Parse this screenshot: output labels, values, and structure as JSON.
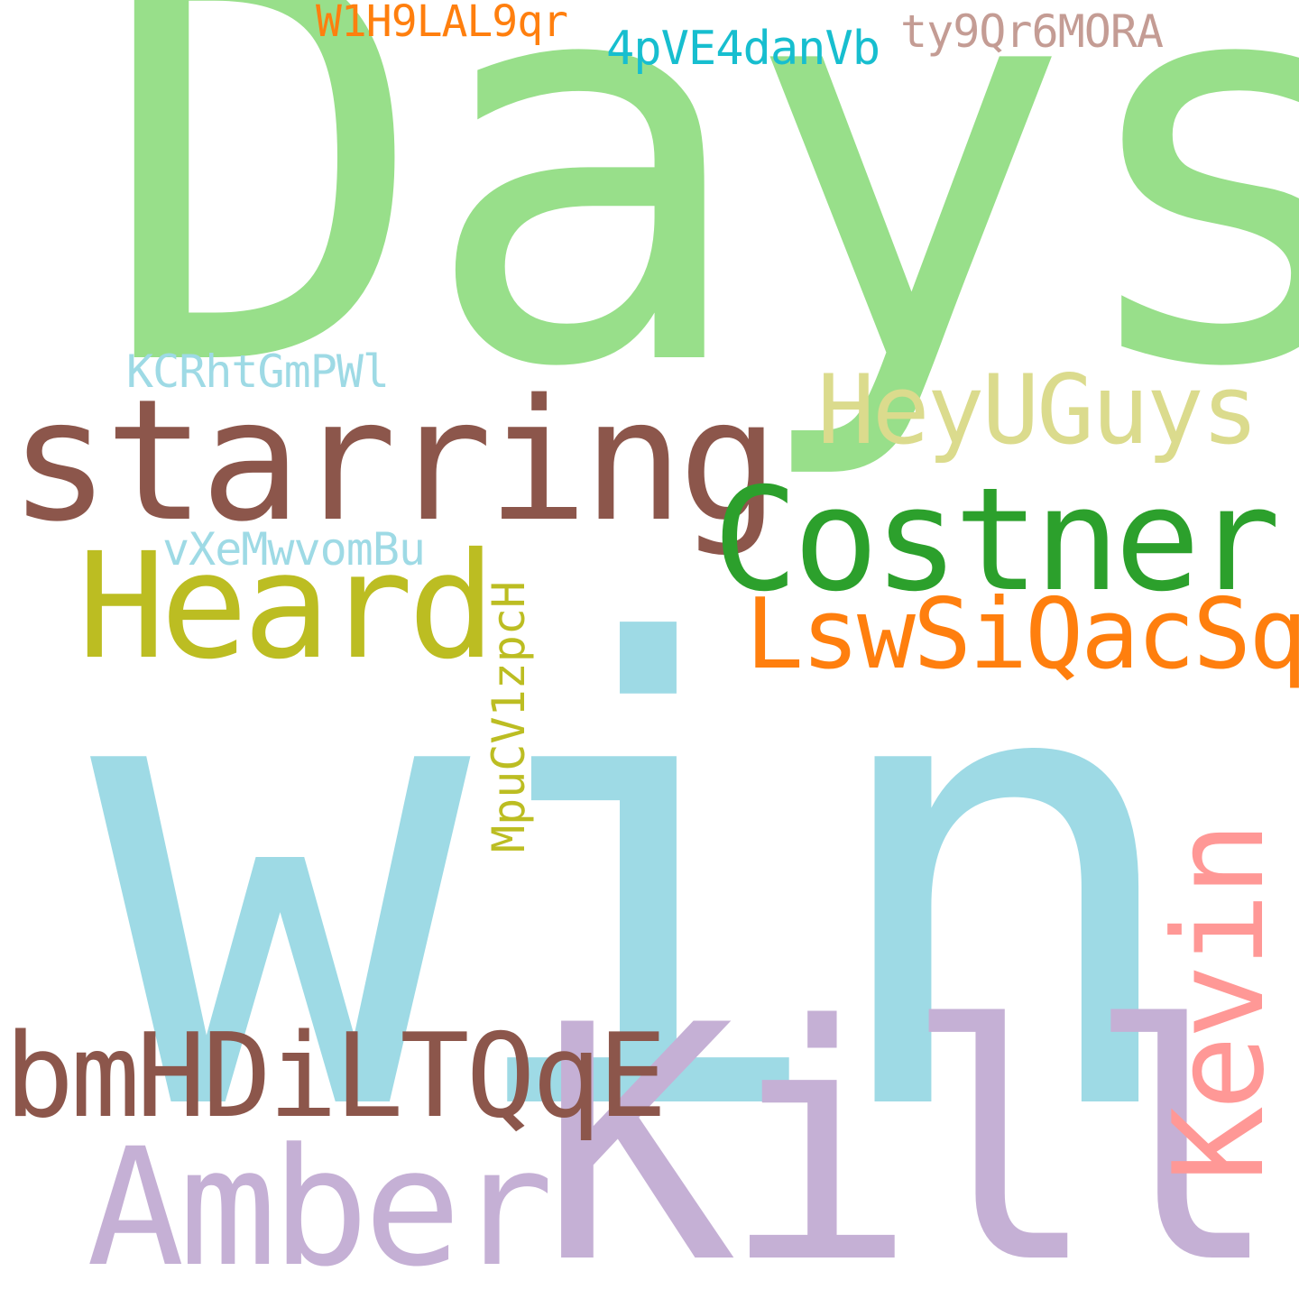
{
  "words": [
    {
      "key": "days",
      "text": "Days",
      "color": "#98df8a",
      "orientation": "horizontal"
    },
    {
      "key": "win",
      "text": "win",
      "color": "#9edae5",
      "orientation": "horizontal"
    },
    {
      "key": "kill",
      "text": "Kill",
      "color": "#c5b0d5",
      "orientation": "horizontal"
    },
    {
      "key": "starring",
      "text": "starring",
      "color": "#8c564b",
      "orientation": "horizontal"
    },
    {
      "key": "costner",
      "text": "Costner",
      "color": "#2ca02c",
      "orientation": "horizontal"
    },
    {
      "key": "heard",
      "text": "Heard",
      "color": "#bcbd22",
      "orientation": "horizontal"
    },
    {
      "key": "heyuguys",
      "text": "HeyUGuys",
      "color": "#dbdb8d",
      "orientation": "horizontal"
    },
    {
      "key": "amber",
      "text": "Amber",
      "color": "#c5b0d5",
      "orientation": "horizontal"
    },
    {
      "key": "bmhd",
      "text": "bmHDiLTQqE",
      "color": "#8c564b",
      "orientation": "horizontal"
    },
    {
      "key": "lsws",
      "text": "LswSiQacSq",
      "color": "#ff7f0e",
      "orientation": "horizontal"
    },
    {
      "key": "kevin",
      "text": "Kevin",
      "color": "#ff9896",
      "orientation": "vertical"
    },
    {
      "key": "mpucv",
      "text": "MpuCV1zpcH",
      "color": "#bcbd22",
      "orientation": "vertical"
    },
    {
      "key": "kcr",
      "text": "KCRhtGmPWl",
      "color": "#9edae5",
      "orientation": "horizontal"
    },
    {
      "key": "vxe",
      "text": "vXeMwvomBu",
      "color": "#9edae5",
      "orientation": "horizontal"
    },
    {
      "key": "w1h",
      "text": "W1H9LAL9qr",
      "color": "#ff7f0e",
      "orientation": "horizontal"
    },
    {
      "key": "4pv",
      "text": "4pVE4danVb",
      "color": "#17becf",
      "orientation": "horizontal"
    },
    {
      "key": "ty9",
      "text": "ty9Qr6MORA",
      "color": "#c49c94",
      "orientation": "horizontal"
    }
  ]
}
